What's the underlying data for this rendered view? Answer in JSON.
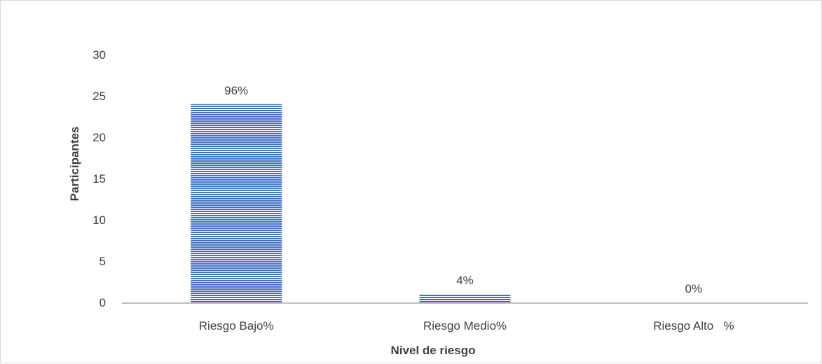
{
  "chart_data": {
    "type": "bar",
    "title": "",
    "xlabel": "Nivel de riesgo",
    "ylabel": "Participantes",
    "categories": [
      "Riesgo Bajo%",
      "Riesgo Medio%",
      "Riesgo Alto   %"
    ],
    "values": [
      24,
      1,
      0
    ],
    "data_labels": [
      "96%",
      "4%",
      "0%"
    ],
    "ylim": [
      0,
      30
    ],
    "yticks": [
      "0",
      "5",
      "10",
      "15",
      "20",
      "25",
      "30"
    ],
    "grid": false,
    "legend": "none",
    "colors": {
      "bar_fill": "#4472c4",
      "bar_stripe": "#ffffff",
      "axis_line": "#bfbfbf",
      "text": "#404040"
    }
  }
}
